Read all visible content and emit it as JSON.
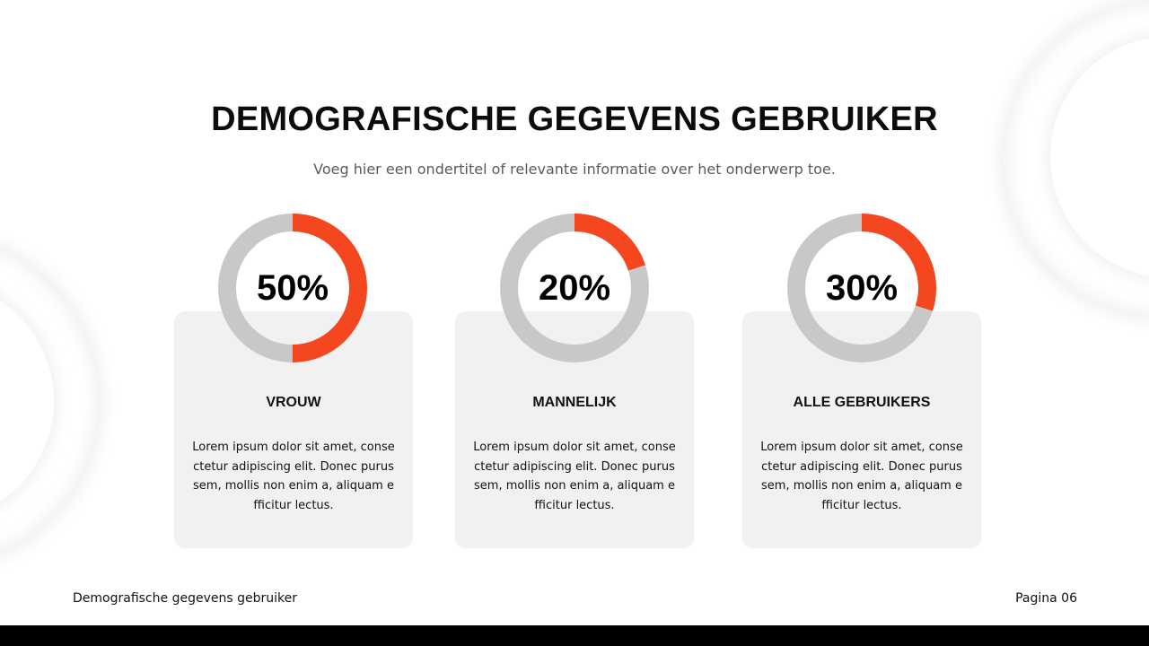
{
  "title": "DEMOGRAFISCHE GEGEVENS GEBRUIKER",
  "subtitle": "Voeg hier een ondertitel of relevante informatie over het onderwerp toe.",
  "colors": {
    "accent": "#F4461F",
    "track": "#C8C8C8",
    "card": "#F1F1F1"
  },
  "stats": [
    {
      "value": 50,
      "display": "50%",
      "label": "VROUW",
      "text": "Lorem ipsum dolor sit amet, consectetur adipiscing elit. Donec purus sem, mollis non enim a, aliquam efficitur lectus."
    },
    {
      "value": 20,
      "display": "20%",
      "label": "MANNELIJK",
      "text": "Lorem ipsum dolor sit amet, consectetur adipiscing elit. Donec purus sem, mollis non enim a, aliquam efficitur lectus."
    },
    {
      "value": 30,
      "display": "30%",
      "label": "ALLE GEBRUIKERS",
      "text": "Lorem ipsum dolor sit amet, consectetur adipiscing elit. Donec purus sem, mollis non enim a, aliquam efficitur lectus."
    }
  ],
  "footer": {
    "left": "Demografische gegevens gebruiker",
    "right": "Pagina 06"
  }
}
